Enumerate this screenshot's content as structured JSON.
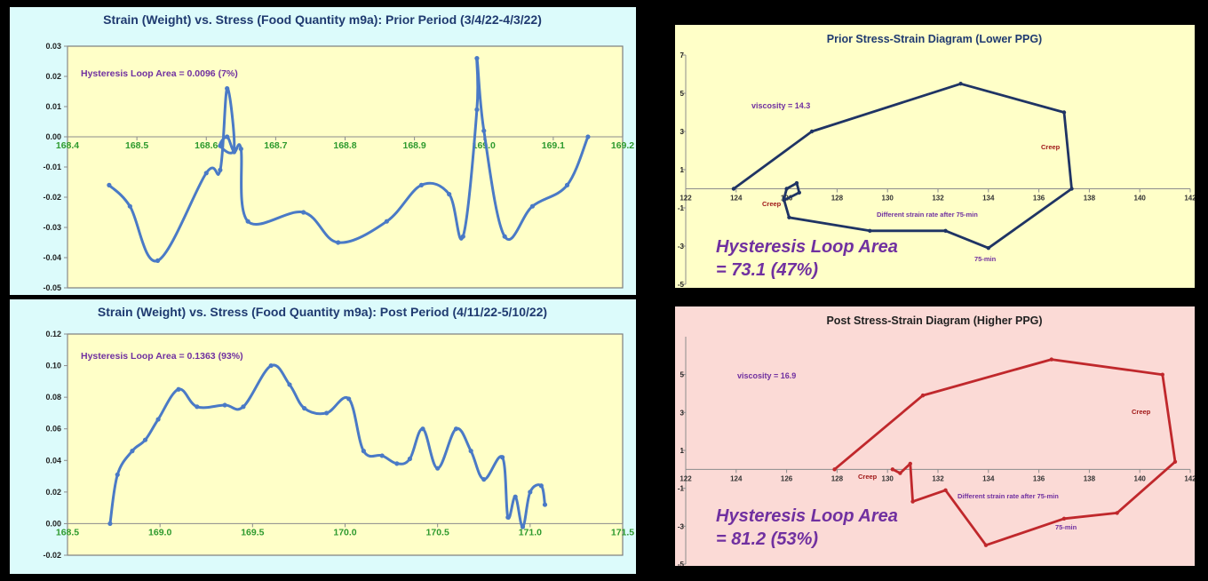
{
  "colors": {
    "page_bg": "#000000",
    "left_panel_bg": "#dcfbfb",
    "plot_bg": "#ffffc8",
    "prior_panel_bg": "#ffffc8",
    "post_panel_bg": "#fbdad6",
    "blue_line": "#4a7ac6",
    "navy_line": "#1f3464",
    "red_line": "#c0282c",
    "title_blue": "#1f3a70",
    "purple": "#7030a0",
    "green_tick": "#2e9a2e",
    "dark_red": "#a01818"
  },
  "chart_data": [
    {
      "type": "line",
      "title": "Strain (Weight) vs. Stress (Food Quantity m9a):  Prior Period (3/4/22-4/3/22)",
      "annotations": [
        "Hysteresis Loop Area = 0.0096 (7%)"
      ],
      "xlim": [
        168.4,
        169.2
      ],
      "ylim": [
        -0.05,
        0.03
      ],
      "xticks": [
        "168.4",
        "168.5",
        "168.6",
        "168.7",
        "168.8",
        "168.9",
        "169.0",
        "169.1",
        "169.2"
      ],
      "yticks": [
        "0.03",
        "0.02",
        "0.01",
        "0.00",
        "-0.01",
        "-0.02",
        "-0.03",
        "-0.04",
        "-0.05"
      ],
      "grid": false,
      "x": [
        168.46,
        168.49,
        168.53,
        168.6,
        168.62,
        168.63,
        168.64,
        168.62,
        168.63,
        168.64,
        168.65,
        168.66,
        168.74,
        168.79,
        168.86,
        168.91,
        168.95,
        168.97,
        168.99,
        168.99,
        169.0,
        169.03,
        169.07,
        169.12,
        169.15
      ],
      "y": [
        -0.016,
        -0.023,
        -0.041,
        -0.012,
        -0.011,
        0.016,
        -0.004,
        -0.003,
        0.0,
        -0.005,
        -0.004,
        -0.028,
        -0.025,
        -0.035,
        -0.028,
        -0.016,
        -0.019,
        -0.033,
        0.009,
        0.026,
        0.002,
        -0.033,
        -0.023,
        -0.016,
        0.0
      ]
    },
    {
      "type": "line",
      "title": "Strain (Weight) vs. Stress (Food Quantity m9a):  Post Period (4/11/22-5/10/22)",
      "annotations": [
        "Hysteresis Loop Area = 0.1363 (93%)"
      ],
      "xlim": [
        168.5,
        171.5
      ],
      "ylim": [
        -0.02,
        0.12
      ],
      "xticks": [
        "168.5",
        "169.0",
        "169.5",
        "170.0",
        "170.5",
        "171.0",
        "171.5"
      ],
      "yticks": [
        "0.12",
        "0.10",
        "0.08",
        "0.06",
        "0.04",
        "0.02",
        "0.00",
        "-0.02"
      ],
      "grid": false,
      "x": [
        168.73,
        168.77,
        168.85,
        168.92,
        168.99,
        169.1,
        169.2,
        169.35,
        169.45,
        169.6,
        169.7,
        169.78,
        169.9,
        170.02,
        170.1,
        170.2,
        170.28,
        170.35,
        170.42,
        170.5,
        170.6,
        170.68,
        170.75,
        170.85,
        170.88,
        170.92,
        170.96,
        171.0,
        171.06,
        171.08
      ],
      "y": [
        0.0,
        0.031,
        0.046,
        0.053,
        0.066,
        0.085,
        0.074,
        0.075,
        0.074,
        0.1,
        0.088,
        0.073,
        0.07,
        0.079,
        0.046,
        0.043,
        0.038,
        0.041,
        0.06,
        0.035,
        0.06,
        0.046,
        0.028,
        0.042,
        0.004,
        0.017,
        -0.002,
        0.02,
        0.024,
        0.012
      ]
    },
    {
      "type": "line",
      "title": "Prior Stress-Strain Diagram (Lower PPG)",
      "annotations": [
        "viscosity = 14.3",
        "Creep",
        "Creep",
        "Different strain rate after 75-min",
        "75-min",
        "Hysteresis Loop Area",
        "= 73.1 (47%)"
      ],
      "xlim": [
        122,
        142
      ],
      "ylim": [
        -5,
        7
      ],
      "xticks": [
        "122",
        "124",
        "126",
        "128",
        "130",
        "132",
        "134",
        "136",
        "138",
        "140",
        "142"
      ],
      "yticks": [
        "7",
        "5",
        "3",
        "1",
        "-1",
        "-3",
        "-5"
      ],
      "grid": false,
      "x": [
        123.9,
        127.0,
        132.9,
        137.0,
        137.3,
        134.0,
        132.3,
        129.3,
        126.1,
        125.9,
        126.5,
        126.4,
        126.0,
        125.9
      ],
      "y": [
        0.0,
        3.0,
        5.5,
        4.0,
        0.0,
        -3.1,
        -2.2,
        -2.2,
        -1.5,
        -0.6,
        -0.2,
        0.3,
        0.0,
        -0.5
      ]
    },
    {
      "type": "line",
      "title": "Post Stress-Strain Diagram  (Higher PPG)",
      "annotations": [
        "viscosity = 16.9",
        "Creep",
        "Creep",
        "Different strain rate after 75-min",
        "75-min",
        "Hysteresis Loop Area",
        "= 81.2 (53%)"
      ],
      "xlim": [
        122,
        142
      ],
      "ylim": [
        -5,
        7
      ],
      "xticks": [
        "122",
        "124",
        "126",
        "128",
        "130",
        "132",
        "134",
        "136",
        "138",
        "140",
        "142"
      ],
      "yticks": [
        "5",
        "3",
        "1",
        "-1",
        "-3",
        "-5"
      ],
      "grid": false,
      "x": [
        127.9,
        131.4,
        136.5,
        140.9,
        141.4,
        139.1,
        137.0,
        133.9,
        132.3,
        131.0,
        130.9,
        130.5,
        130.2
      ],
      "y": [
        0.0,
        3.9,
        5.8,
        5.0,
        0.4,
        -2.3,
        -2.6,
        -4.0,
        -1.1,
        -1.7,
        0.3,
        -0.2,
        0.0
      ]
    }
  ]
}
